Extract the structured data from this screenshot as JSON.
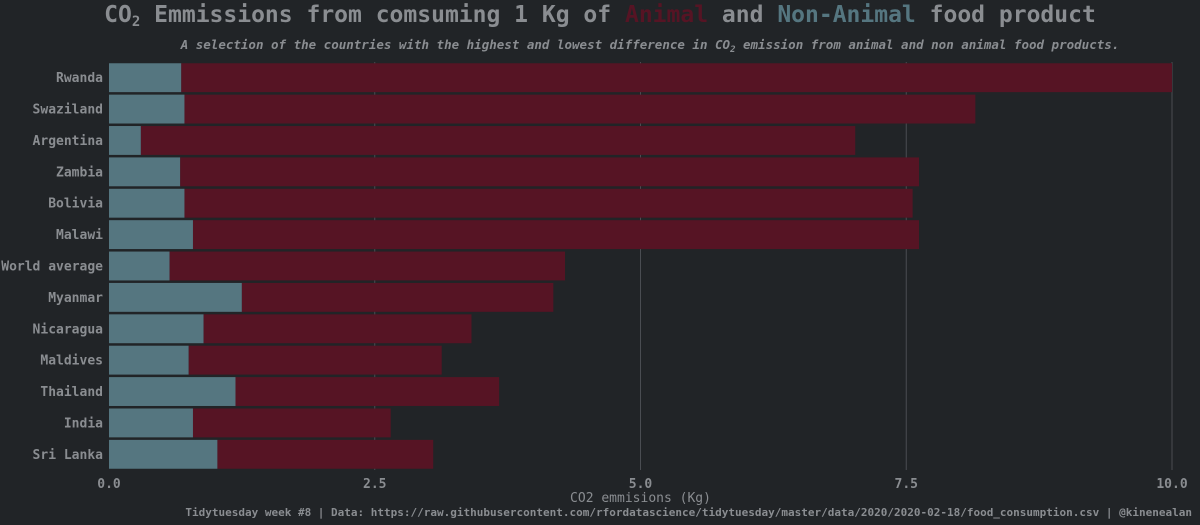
{
  "title": {
    "prefix": "CO",
    "sub": "2",
    "mid": " Emmissions from comsuming 1 Kg of ",
    "animal_word": "Animal",
    "and": " and ",
    "nonanimal_word": "Non-Animal",
    "suffix": " food product"
  },
  "subtitle": {
    "prefix": "A selection of the countries with the highest and lowest difference in CO",
    "sub": "2",
    "suffix": " emission from animal and non animal food products."
  },
  "caption": "Tidytuesday week #8 | Data: https://raw.githubusercontent.com/rfordatascience/tidytuesday/master/data/2020/2020-02-18/food_consumption.csv | @kinenealan",
  "colors": {
    "background": "#212427",
    "animal": "#561424",
    "non_animal": "#557680",
    "text": "#8a8d91",
    "grid": "#4a4d52"
  },
  "chart_data": {
    "type": "bar",
    "orientation": "horizontal",
    "stacked": true,
    "xlabel": "CO2 emmisions (Kg)",
    "xlim": [
      0,
      10
    ],
    "xticks": [
      0,
      2.5,
      5,
      7.5,
      10
    ],
    "xtick_labels": [
      "0.0",
      "2.5",
      "5.0",
      "7.5",
      "10.0"
    ],
    "grid": true,
    "categories": [
      "Rwanda",
      "Swaziland",
      "Argentina",
      "Zambia",
      "Bolivia",
      "Malawi",
      "World average",
      "Myanmar",
      "Nicaragua",
      "Maldives",
      "Thailand",
      "India",
      "Sri Lanka"
    ],
    "series": [
      {
        "key": "non_animal",
        "values": [
          0.68,
          0.71,
          0.3,
          0.67,
          0.71,
          0.79,
          0.57,
          1.25,
          0.89,
          0.75,
          1.19,
          0.79,
          1.02
        ]
      },
      {
        "key": "animal",
        "values": [
          9.32,
          7.44,
          6.72,
          6.95,
          6.85,
          6.83,
          3.72,
          2.93,
          2.52,
          2.38,
          2.48,
          1.86,
          2.03
        ]
      }
    ]
  }
}
